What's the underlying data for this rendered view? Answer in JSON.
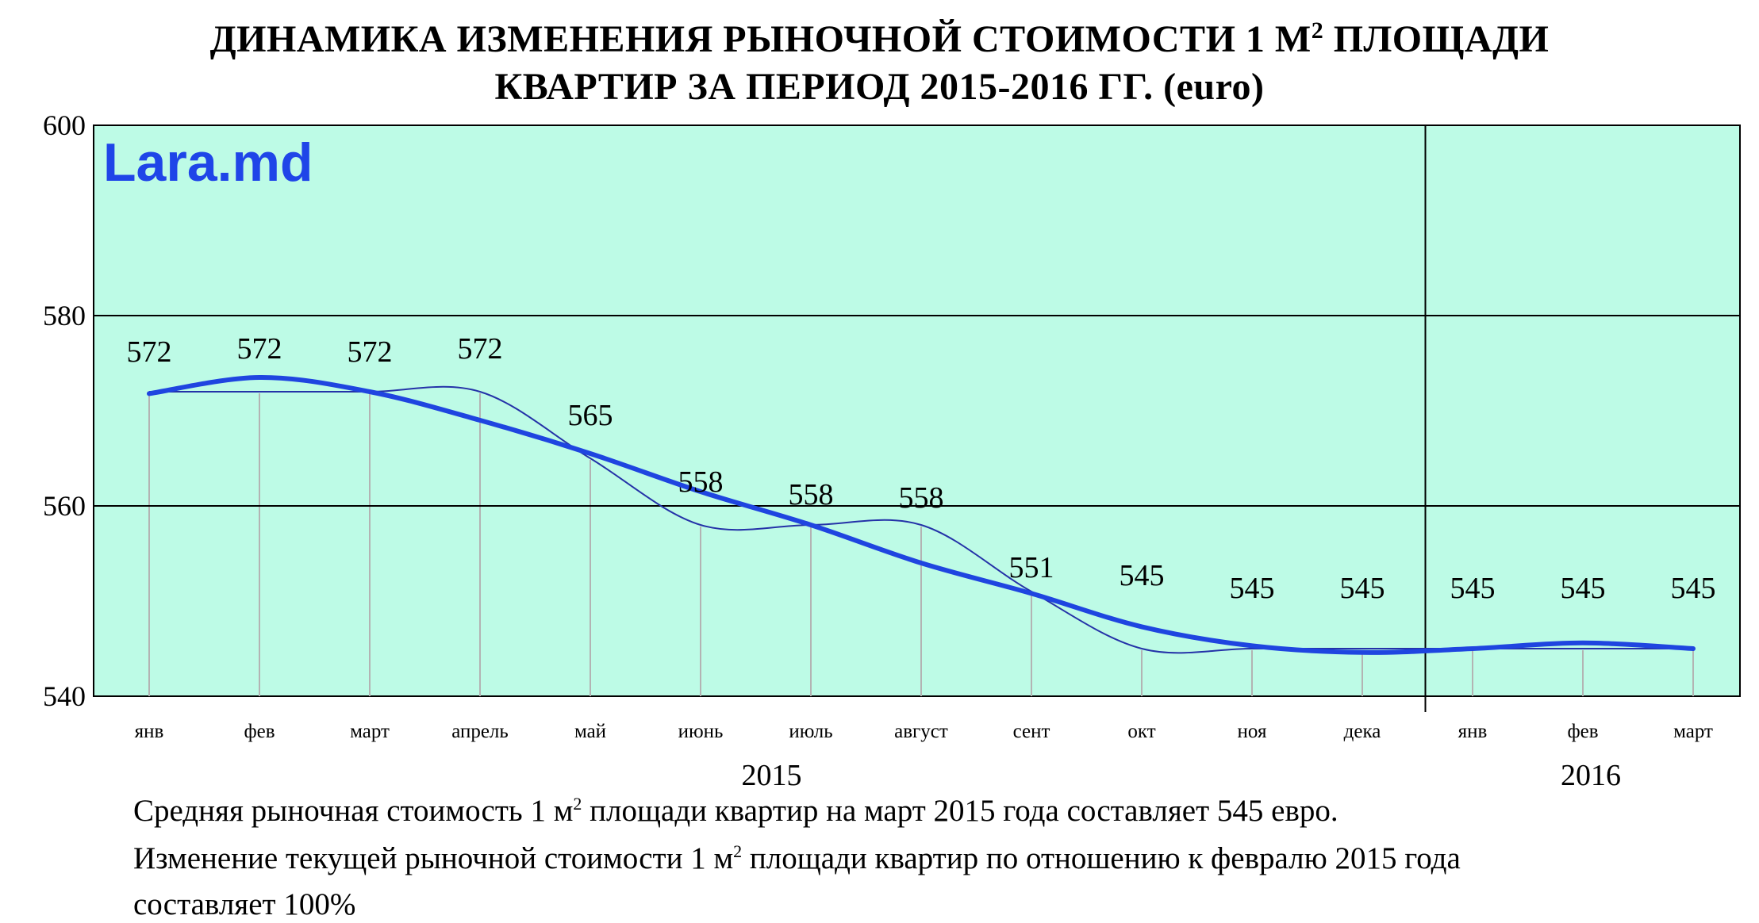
{
  "title": {
    "line1_main": "ДИНАМИКА ИЗМЕНЕНИЯ РЫНОЧНОЙ СТОИМОСТИ 1 М",
    "line1_sup": "2",
    "line1_tail": " ПЛОЩАДИ",
    "line2": "КВАРТИР ЗА ПЕРИОД 2015-2016 ГГ. (euro)"
  },
  "watermark": "Lara.md",
  "caption": {
    "line1_a": "Средняя рыночная стоимость 1 м",
    "line1_sup": "2",
    "line1_b": " площади квартир на март 2015 года составляет 545 евро.",
    "line2_a": "Изменение текущей рыночной стоимости 1 м",
    "line2_sup": "2",
    "line2_b": " площади квартир по отношению к февралю 2015 года",
    "line3": "составляет  100%"
  },
  "colors": {
    "plot_background": "#bdfbe6",
    "trend_line": "#1f45e0",
    "value_line": "#2432a8",
    "watermark": "#1f45e8",
    "grid": "#000000",
    "drop_lines": "#b3b3b3"
  },
  "chart_data": {
    "type": "line",
    "categories": [
      "янв",
      "фев",
      "март",
      "апрель",
      "май",
      "июнь",
      "июль",
      "август",
      "сент",
      "окт",
      "ноя",
      "дека",
      "янв",
      "фев",
      "март"
    ],
    "years": [
      "2015",
      "2016"
    ],
    "series": [
      {
        "values": [
          572,
          572,
          572,
          572,
          565,
          558,
          558,
          558,
          551,
          545,
          545,
          545,
          545,
          545,
          545
        ]
      }
    ],
    "data_labels": [
      "572",
      "572",
      "572",
      "572",
      "565",
      "558",
      "558",
      "558",
      "551",
      "545",
      "545",
      "545",
      "545",
      "545",
      "545"
    ],
    "trend_values": [
      571.8,
      573.5,
      572.0,
      569.0,
      565.5,
      561.5,
      558.0,
      554.0,
      550.8,
      547.3,
      545.3,
      544.6,
      545.0,
      545.6,
      545.0
    ],
    "ylim": [
      540,
      600
    ],
    "yticks": [
      "540",
      "560",
      "580",
      "600"
    ],
    "grid": true,
    "legend": "none"
  }
}
